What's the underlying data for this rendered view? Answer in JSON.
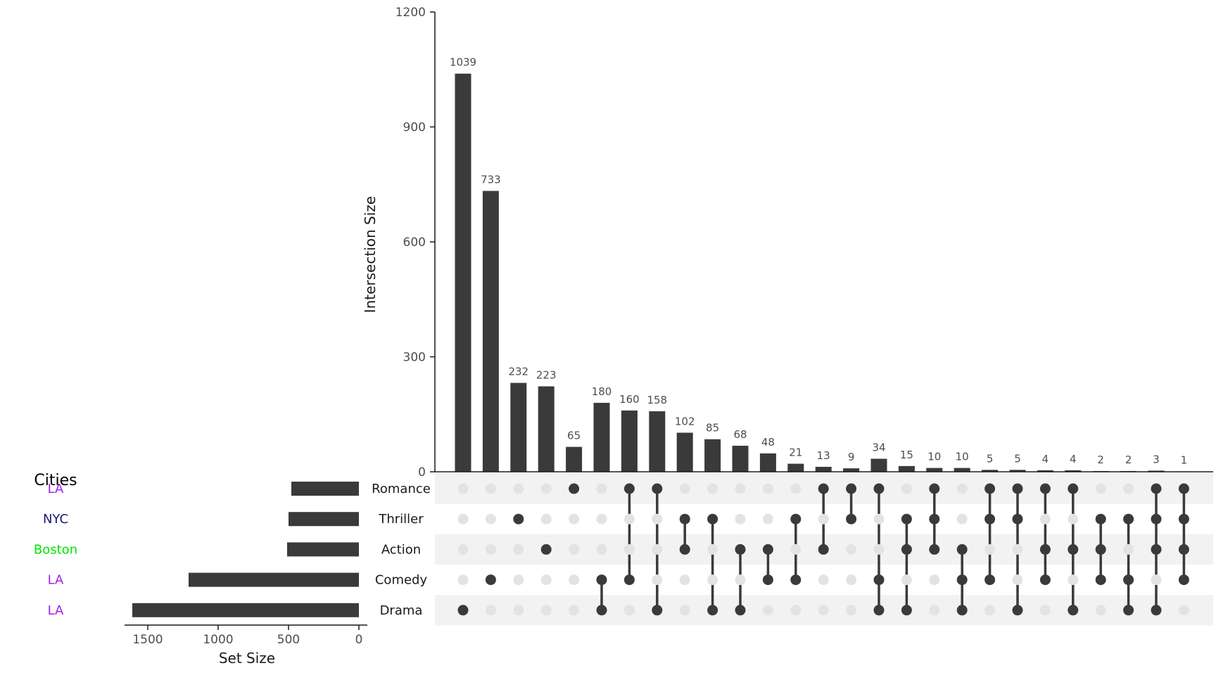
{
  "chart_data": {
    "type": "bar",
    "subtype": "upset",
    "sets": [
      "Romance",
      "Thriller",
      "Action",
      "Comedy",
      "Drama"
    ],
    "set_sizes": [
      480,
      500,
      510,
      1210,
      1610
    ],
    "set_size_axis": {
      "title": "Set Size",
      "ticks": [
        "1500",
        "1000",
        "500",
        "0"
      ],
      "tick_values": [
        1500,
        1000,
        500,
        0
      ],
      "lim": [
        0,
        1680
      ]
    },
    "intersection_axis": {
      "title": "Intersection Size",
      "ticks": [
        "0",
        "300",
        "600",
        "900",
        "1200"
      ],
      "tick_values": [
        0,
        300,
        600,
        900,
        1200
      ],
      "lim": [
        0,
        1200
      ]
    },
    "intersections": [
      {
        "value": 1039,
        "members": [
          "Drama"
        ]
      },
      {
        "value": 733,
        "members": [
          "Comedy"
        ]
      },
      {
        "value": 232,
        "members": [
          "Thriller"
        ]
      },
      {
        "value": 223,
        "members": [
          "Action"
        ]
      },
      {
        "value": 65,
        "members": [
          "Romance"
        ]
      },
      {
        "value": 180,
        "members": [
          "Comedy",
          "Drama"
        ]
      },
      {
        "value": 160,
        "members": [
          "Romance",
          "Comedy"
        ]
      },
      {
        "value": 158,
        "members": [
          "Romance",
          "Drama"
        ]
      },
      {
        "value": 102,
        "members": [
          "Thriller",
          "Action"
        ]
      },
      {
        "value": 85,
        "members": [
          "Thriller",
          "Drama"
        ]
      },
      {
        "value": 68,
        "members": [
          "Action",
          "Drama"
        ]
      },
      {
        "value": 48,
        "members": [
          "Action",
          "Comedy"
        ]
      },
      {
        "value": 21,
        "members": [
          "Thriller",
          "Comedy"
        ]
      },
      {
        "value": 13,
        "members": [
          "Romance",
          "Action"
        ]
      },
      {
        "value": 9,
        "members": [
          "Romance",
          "Thriller"
        ]
      },
      {
        "value": 34,
        "members": [
          "Romance",
          "Comedy",
          "Drama"
        ]
      },
      {
        "value": 15,
        "members": [
          "Thriller",
          "Action",
          "Drama"
        ]
      },
      {
        "value": 10,
        "members": [
          "Romance",
          "Thriller",
          "Action"
        ]
      },
      {
        "value": 10,
        "members": [
          "Action",
          "Comedy",
          "Drama"
        ]
      },
      {
        "value": 5,
        "members": [
          "Romance",
          "Thriller",
          "Comedy"
        ]
      },
      {
        "value": 5,
        "members": [
          "Romance",
          "Thriller",
          "Drama"
        ]
      },
      {
        "value": 4,
        "members": [
          "Romance",
          "Action",
          "Comedy"
        ]
      },
      {
        "value": 4,
        "members": [
          "Romance",
          "Action",
          "Drama"
        ]
      },
      {
        "value": 2,
        "members": [
          "Thriller",
          "Action",
          "Comedy"
        ]
      },
      {
        "value": 2,
        "members": [
          "Thriller",
          "Comedy",
          "Drama"
        ]
      },
      {
        "value": 3,
        "members": [
          "Romance",
          "Thriller",
          "Action",
          "Drama"
        ]
      },
      {
        "value": 1,
        "members": [
          "Romance",
          "Thriller",
          "Action",
          "Comedy"
        ]
      }
    ],
    "legend": {
      "title": "Cities",
      "entries": [
        {
          "label": "LA",
          "color": "#a020f0"
        },
        {
          "label": "NYC",
          "color": "#191970"
        },
        {
          "label": "Boston",
          "color": "#00e600"
        },
        {
          "label": "LA",
          "color": "#a020f0"
        },
        {
          "label": "LA",
          "color": "#a020f0"
        }
      ]
    },
    "colors": {
      "bar": "#3a3a3a",
      "dot_active": "#3a3a3a",
      "dot_inactive": "#e3e3e3",
      "stripe": "#f2f2f2",
      "axis": "#1a1a1a"
    }
  }
}
